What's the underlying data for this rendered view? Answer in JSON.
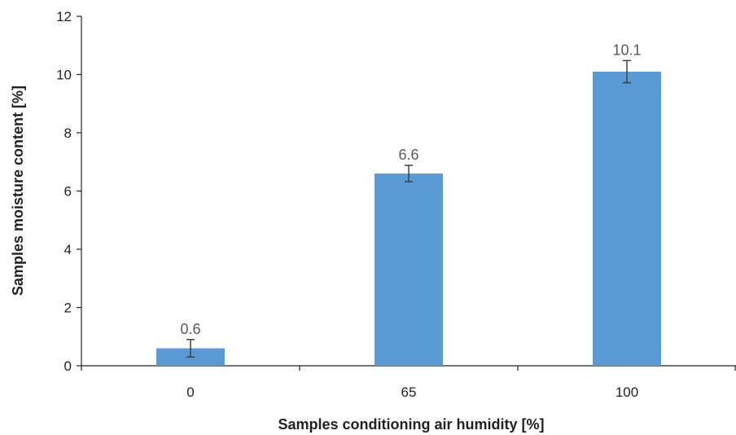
{
  "chart_data": {
    "type": "bar",
    "title": "",
    "xlabel": "Samples conditioning air humidity [%]",
    "ylabel": "Samples moisture content [%]",
    "categories": [
      "0",
      "65",
      "100"
    ],
    "values": [
      0.6,
      6.6,
      10.1
    ],
    "data_labels": [
      "0.6",
      "6.6",
      "10.1"
    ],
    "error": [
      0.3,
      0.28,
      0.38
    ],
    "ylim": [
      0,
      12
    ],
    "yticks": [
      0,
      2,
      4,
      6,
      8,
      10,
      12
    ],
    "ytick_labels": [
      "0",
      "2",
      "4",
      "6",
      "8",
      "10",
      "12"
    ],
    "grid": false,
    "legend": "none",
    "bar_color": "#5B9BD5",
    "error_bar_color": "#404040"
  }
}
